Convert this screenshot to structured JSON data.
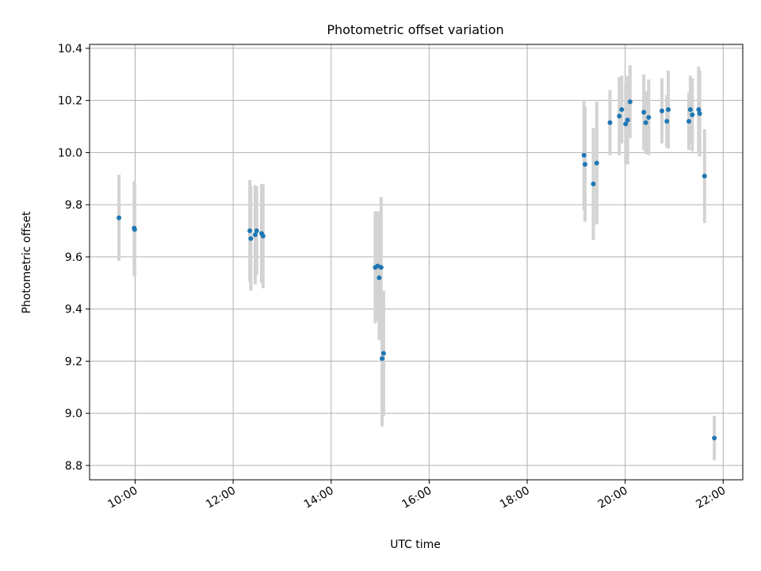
{
  "chart_data": {
    "type": "scatter",
    "title": "Photometric offset variation",
    "xlabel": "UTC time",
    "ylabel": "Photometric offset",
    "xlim": [
      9.07,
      22.4
    ],
    "ylim": [
      8.745,
      10.415
    ],
    "grid": true,
    "x_ticks": [
      {
        "value": 10,
        "label": "10:00"
      },
      {
        "value": 12,
        "label": "12:00"
      },
      {
        "value": 14,
        "label": "14:00"
      },
      {
        "value": 16,
        "label": "16:00"
      },
      {
        "value": 18,
        "label": "18:00"
      },
      {
        "value": 20,
        "label": "20:00"
      },
      {
        "value": 22,
        "label": "22:00"
      }
    ],
    "y_ticks": [
      {
        "value": 8.8,
        "label": "8.8"
      },
      {
        "value": 9.0,
        "label": "9.0"
      },
      {
        "value": 9.2,
        "label": "9.2"
      },
      {
        "value": 9.4,
        "label": "9.4"
      },
      {
        "value": 9.6,
        "label": "9.6"
      },
      {
        "value": 9.8,
        "label": "9.8"
      },
      {
        "value": 10.0,
        "label": "10.0"
      },
      {
        "value": 10.2,
        "label": "10.2"
      },
      {
        "value": 10.4,
        "label": "10.4"
      }
    ],
    "colors": {
      "marker": "#1f77b4",
      "errorbar": "#d3d3d3",
      "grid": "#b0b0b0",
      "axis": "#000000"
    },
    "series": [
      {
        "name": "offset",
        "points": [
          {
            "x": 9.67,
            "y": 9.75,
            "err": 0.165
          },
          {
            "x": 9.98,
            "y": 9.71,
            "err": 0.18
          },
          {
            "x": 9.99,
            "y": 9.705,
            "err": 0.18
          },
          {
            "x": 12.34,
            "y": 9.7,
            "err": 0.195
          },
          {
            "x": 12.36,
            "y": 9.67,
            "err": 0.2
          },
          {
            "x": 12.45,
            "y": 9.685,
            "err": 0.19
          },
          {
            "x": 12.48,
            "y": 9.7,
            "err": 0.17
          },
          {
            "x": 12.58,
            "y": 9.69,
            "err": 0.19
          },
          {
            "x": 12.61,
            "y": 9.68,
            "err": 0.2
          },
          {
            "x": 14.9,
            "y": 9.56,
            "err": 0.215
          },
          {
            "x": 14.95,
            "y": 9.565,
            "err": 0.21
          },
          {
            "x": 14.98,
            "y": 9.52,
            "err": 0.24
          },
          {
            "x": 15.02,
            "y": 9.56,
            "err": 0.27
          },
          {
            "x": 15.04,
            "y": 9.21,
            "err": 0.26
          },
          {
            "x": 15.07,
            "y": 9.23,
            "err": 0.24
          },
          {
            "x": 19.16,
            "y": 9.99,
            "err": 0.21
          },
          {
            "x": 19.18,
            "y": 9.955,
            "err": 0.22
          },
          {
            "x": 19.35,
            "y": 9.88,
            "err": 0.215
          },
          {
            "x": 19.42,
            "y": 9.96,
            "err": 0.235
          },
          {
            "x": 19.69,
            "y": 10.115,
            "err": 0.125
          },
          {
            "x": 19.88,
            "y": 10.14,
            "err": 0.15
          },
          {
            "x": 19.93,
            "y": 10.165,
            "err": 0.13
          },
          {
            "x": 20.01,
            "y": 10.11,
            "err": 0.155
          },
          {
            "x": 20.05,
            "y": 10.125,
            "err": 0.17
          },
          {
            "x": 20.1,
            "y": 10.195,
            "err": 0.14
          },
          {
            "x": 20.38,
            "y": 10.155,
            "err": 0.145
          },
          {
            "x": 20.42,
            "y": 10.115,
            "err": 0.12
          },
          {
            "x": 20.48,
            "y": 10.135,
            "err": 0.145
          },
          {
            "x": 20.75,
            "y": 10.16,
            "err": 0.125
          },
          {
            "x": 20.85,
            "y": 10.12,
            "err": 0.1
          },
          {
            "x": 20.88,
            "y": 10.165,
            "err": 0.15
          },
          {
            "x": 21.3,
            "y": 10.12,
            "err": 0.11
          },
          {
            "x": 21.33,
            "y": 10.165,
            "err": 0.13
          },
          {
            "x": 21.37,
            "y": 10.145,
            "err": 0.14
          },
          {
            "x": 21.5,
            "y": 10.165,
            "err": 0.165
          },
          {
            "x": 21.52,
            "y": 10.15,
            "err": 0.165
          },
          {
            "x": 21.62,
            "y": 9.91,
            "err": 0.18
          },
          {
            "x": 21.82,
            "y": 8.905,
            "err": 0.085
          }
        ]
      }
    ]
  }
}
